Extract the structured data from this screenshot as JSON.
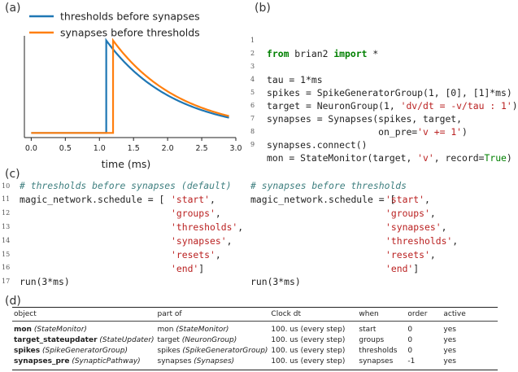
{
  "panels": {
    "a": "(a)",
    "b": "(b)",
    "c": "(c)",
    "d": "(d)"
  },
  "chart_data": {
    "type": "line",
    "xlabel": "time (ms)",
    "ylabel": "",
    "xlim": [
      -0.1,
      3.0
    ],
    "ylim": [
      -0.05,
      1.05
    ],
    "xticks": [
      "0.0",
      "0.5",
      "1.0",
      "1.5",
      "2.0",
      "2.5",
      "3.0"
    ],
    "legend_position": "top-left",
    "series": [
      {
        "name": "thresholds before synapses",
        "color": "#1f77b4",
        "spike_time": 1.1,
        "tau": 1.0,
        "points": [
          [
            0.0,
            0.0
          ],
          [
            1.1,
            0.0
          ],
          [
            1.1,
            1.0
          ],
          [
            1.5,
            0.67
          ],
          [
            2.0,
            0.41
          ],
          [
            2.5,
            0.25
          ],
          [
            2.9,
            0.17
          ]
        ]
      },
      {
        "name": "synapses before thresholds",
        "color": "#ff7f0e",
        "spike_time": 1.2,
        "tau": 1.0,
        "points": [
          [
            0.0,
            0.0
          ],
          [
            1.2,
            0.0
          ],
          [
            1.2,
            1.0
          ],
          [
            1.5,
            0.74
          ],
          [
            2.0,
            0.45
          ],
          [
            2.5,
            0.27
          ],
          [
            2.9,
            0.18
          ]
        ]
      }
    ]
  },
  "code_b": {
    "line_numbers": [
      "1",
      "2",
      "3",
      "4",
      "5",
      "6",
      "7",
      "8",
      "9"
    ],
    "l1_kw1": "from",
    "l1_mod": " brian2 ",
    "l1_kw2": "import",
    "l1_rest": " *",
    "l3": "tau = 1*ms",
    "l4": "spikes = SpikeGeneratorGroup(1, [0], [1]*ms)",
    "l5_a": "target = NeuronGroup(1, ",
    "l5_s": "'dv/dt = -v/tau : 1'",
    "l5_b": ")",
    "l6": "synapses = Synapses(spikes, target,",
    "l7_a": "                    on_pre=",
    "l7_s": "'v += 1'",
    "l7_b": ")",
    "l8": "synapses.connect()",
    "l9_a": "mon = StateMonitor(target, ",
    "l9_s": "'v'",
    "l9_b": ", record=",
    "l9_t": "True",
    "l9_c": ")"
  },
  "code_c": {
    "line_numbers": [
      "10",
      "11",
      "12",
      "13",
      "14",
      "15",
      "16",
      "17"
    ],
    "left_comment": "# thresholds before synapses (default)",
    "left_prefix": "magic_network.schedule = [",
    "left_items": [
      "'start'",
      "'groups'",
      "'thresholds'",
      "'synapses'",
      "'resets'",
      "'end'"
    ],
    "right_comment": "# synapses before thresholds",
    "right_prefix": "magic_network.schedule = [",
    "right_items": [
      "'start'",
      "'groups'",
      "'synapses'",
      "'thresholds'",
      "'resets'",
      "'end'"
    ],
    "run": "run(3*ms)"
  },
  "table": {
    "headers": [
      "object",
      "part of",
      "Clock dt",
      "when",
      "order",
      "active"
    ],
    "rows": [
      {
        "obj": "mon",
        "obj_type": "(StateMonitor)",
        "part": "mon ",
        "part_type": "(StateMonitor)",
        "dt": "100. us (every step)",
        "when": "start",
        "order": "0",
        "active": "yes"
      },
      {
        "obj": "target_stateupdater",
        "obj_type": "(StateUpdater)",
        "part": "target ",
        "part_type": "(NeuronGroup)",
        "dt": "100. us (every step)",
        "when": "groups",
        "order": "0",
        "active": "yes"
      },
      {
        "obj": "spikes",
        "obj_type": "(SpikeGeneratorGroup)",
        "part": "spikes ",
        "part_type": "(SpikeGeneratorGroup)",
        "dt": "100. us (every step)",
        "when": "thresholds",
        "order": "0",
        "active": "yes"
      },
      {
        "obj": "synapses_pre",
        "obj_type": "(SynapticPathway)",
        "part": "synapses ",
        "part_type": "(Synapses)",
        "dt": "100. us (every step)",
        "when": "synapses",
        "order": "-1",
        "active": "yes"
      }
    ]
  }
}
